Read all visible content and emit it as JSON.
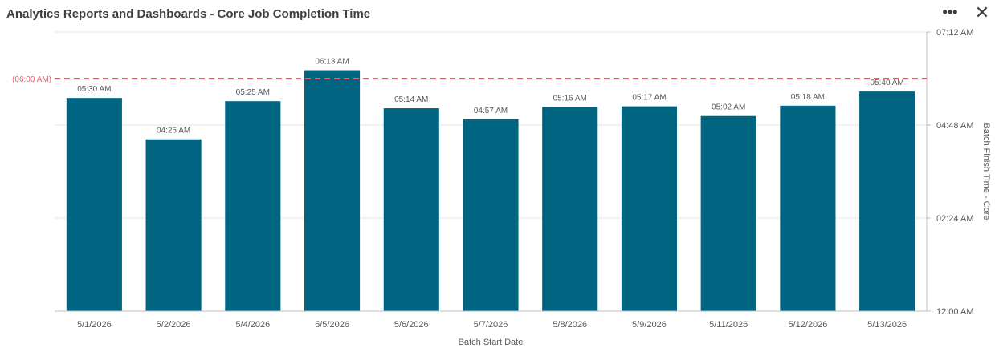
{
  "header": {
    "title": "Analytics Reports and Dashboards - Core Job Completion Time",
    "more_icon": "more-icon",
    "close_icon": "close-icon",
    "more_glyph": "•••",
    "close_glyph": "✕"
  },
  "chart_data": {
    "type": "bar",
    "title": "Analytics Reports and Dashboards - Core Job Completion Time",
    "xlabel": "Batch Start Date",
    "ylabel": "Batch Finish Time - Core",
    "categories": [
      "5/1/2026",
      "5/2/2026",
      "5/4/2026",
      "5/5/2026",
      "5/6/2026",
      "5/7/2026",
      "5/8/2026",
      "5/9/2026",
      "5/11/2026",
      "5/12/2026",
      "5/13/2026"
    ],
    "values": [
      "05:30 AM",
      "04:26 AM",
      "05:25 AM",
      "06:13 AM",
      "05:14 AM",
      "04:57 AM",
      "05:16 AM",
      "05:17 AM",
      "05:02 AM",
      "05:18 AM",
      "05:40 AM"
    ],
    "ylim": [
      "12:00 AM",
      "07:12 AM"
    ],
    "y_ticks": [
      "12:00 AM",
      "02:24 AM",
      "04:48 AM",
      "07:12 AM"
    ],
    "y_axis_side": "right",
    "reference_line": {
      "value": "06:00 AM",
      "label": "(06:00 AM)",
      "color": "#f2566a",
      "style": "dashed"
    },
    "bar_color": "#006580",
    "grid": true,
    "legend": "none"
  }
}
